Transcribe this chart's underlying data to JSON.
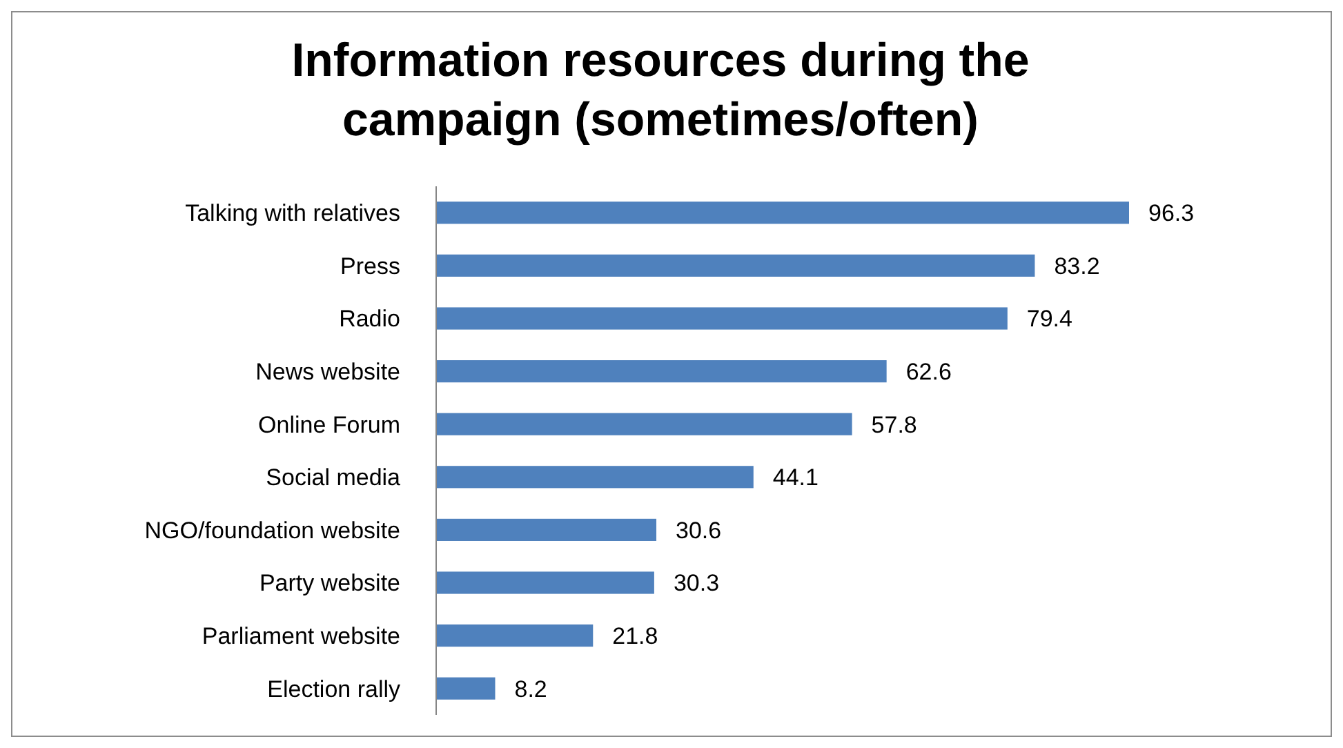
{
  "chart_data": {
    "type": "bar",
    "orientation": "horizontal",
    "title": "Information resources during the campaign (sometimes/often)",
    "categories": [
      "Talking with relatives",
      "Press",
      "Radio",
      "News website",
      "Online Forum",
      "Social media",
      "NGO/foundation website",
      "Party website",
      "Parliament website",
      "Election rally"
    ],
    "values": [
      96.3,
      83.2,
      79.4,
      62.6,
      57.8,
      44.1,
      30.6,
      30.3,
      21.8,
      8.2
    ],
    "color": "#4f81bd",
    "data_labels": true
  }
}
